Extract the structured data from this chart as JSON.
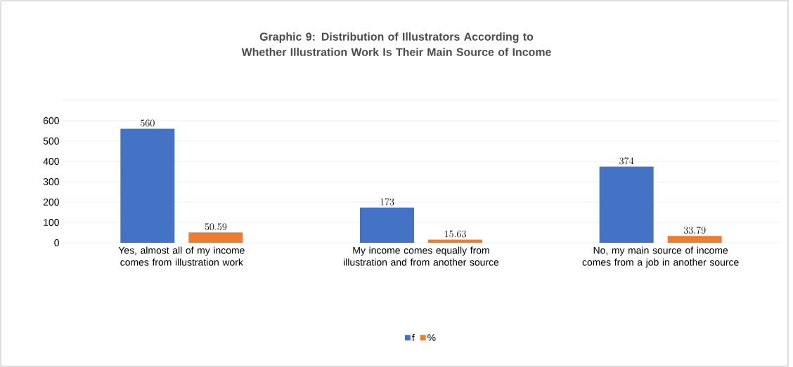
{
  "chart_data": {
    "type": "bar",
    "title": "Graphic 9: Distribution of Illustrators According to Whether Illustration Work Is Their Main Source of Income",
    "categories": [
      "Yes, almost all of my income comes from illustration work",
      "My income comes equally from illustration and from another source",
      "No, my main source of income comes from a job in another source"
    ],
    "series": [
      {
        "name": "f",
        "color": "#4472c4",
        "values": [
          560,
          173,
          374
        ]
      },
      {
        "name": "%",
        "color": "#ed7d31",
        "values": [
          50.59,
          15.63,
          33.79
        ]
      }
    ],
    "ylim": [
      0,
      700
    ],
    "yticks": [
      0,
      100,
      200,
      300,
      400,
      500,
      600,
      {
        "value": 700,
        "label": null
      }
    ],
    "grid": "y",
    "legend": "bottom",
    "data_labels": true
  }
}
